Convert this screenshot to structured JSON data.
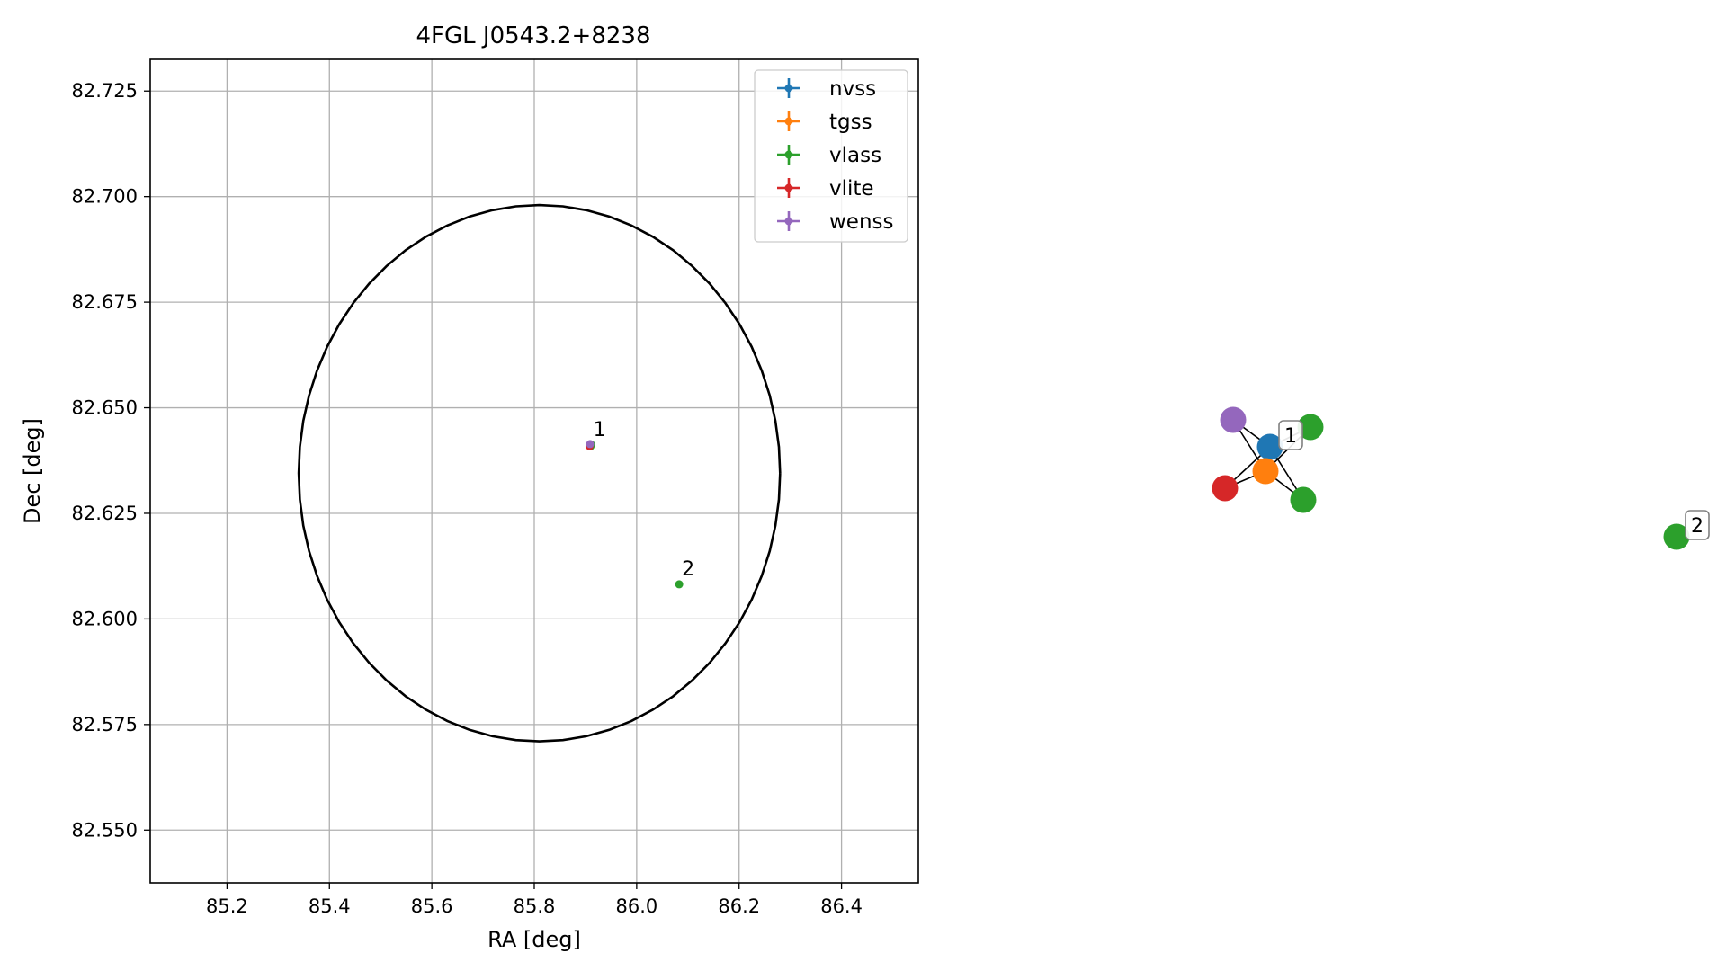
{
  "chart_data": [
    {
      "type": "scatter",
      "title": "4FGL J0543.2+8238",
      "xlabel": "RA [deg]",
      "ylabel": "Dec [deg]",
      "xlim": [
        85.05,
        86.55
      ],
      "ylim": [
        82.5375,
        82.7325
      ],
      "grid": true,
      "x_ticks": [
        85.2,
        85.4,
        85.6,
        85.8,
        86.0,
        86.2,
        86.4
      ],
      "x_tick_labels": [
        "85.2",
        "85.4",
        "85.6",
        "85.8",
        "86.0",
        "86.2",
        "86.4"
      ],
      "y_ticks": [
        82.55,
        82.575,
        82.6,
        82.625,
        82.65,
        82.675,
        82.7,
        82.725
      ],
      "y_tick_labels": [
        "82.550",
        "82.575",
        "82.600",
        "82.625",
        "82.650",
        "82.675",
        "82.700",
        "82.725"
      ],
      "legend_position": "top-right",
      "series": [
        {
          "name": "nvss",
          "color": "#1f77b4",
          "points": [
            {
              "x": 85.91,
              "y": 82.6412
            }
          ]
        },
        {
          "name": "tgss",
          "color": "#ff7f0e",
          "points": [
            {
              "x": 85.909,
              "y": 82.641
            }
          ]
        },
        {
          "name": "vlass",
          "color": "#2ca02c",
          "points": [
            {
              "x": 85.911,
              "y": 82.6413
            },
            {
              "x": 85.91,
              "y": 82.6409
            },
            {
              "x": 86.083,
              "y": 82.6082
            }
          ]
        },
        {
          "name": "vlite",
          "color": "#d62728",
          "points": [
            {
              "x": 85.908,
              "y": 82.6409
            }
          ]
        },
        {
          "name": "wenss",
          "color": "#9467bd",
          "points": [
            {
              "x": 85.909,
              "y": 82.6414
            }
          ]
        }
      ],
      "ellipse": {
        "center_x": 85.81,
        "center_y": 82.6345,
        "semi_x_deg": 0.47,
        "semi_y_deg": 0.0635,
        "color": "#000000"
      },
      "annotations": [
        {
          "text": "1",
          "x": 85.91,
          "y": 82.6412
        },
        {
          "text": "2",
          "x": 86.083,
          "y": 82.6082
        }
      ]
    },
    {
      "type": "network",
      "nodes": [
        {
          "id": "nvss_1",
          "color": "#1f77b4"
        },
        {
          "id": "tgss_1",
          "color": "#ff7f0e"
        },
        {
          "id": "vlass_1a",
          "color": "#2ca02c"
        },
        {
          "id": "vlass_1b",
          "color": "#2ca02c"
        },
        {
          "id": "vlite_1",
          "color": "#d62728"
        },
        {
          "id": "wenss_1",
          "color": "#9467bd"
        },
        {
          "id": "vlass_2",
          "color": "#2ca02c"
        }
      ],
      "edges": [
        [
          "wenss_1",
          "nvss_1"
        ],
        [
          "wenss_1",
          "tgss_1"
        ],
        [
          "nvss_1",
          "vlass_1a"
        ],
        [
          "nvss_1",
          "tgss_1"
        ],
        [
          "nvss_1",
          "vlass_1b"
        ],
        [
          "nvss_1",
          "vlite_1"
        ],
        [
          "tgss_1",
          "vlass_1a"
        ],
        [
          "tgss_1",
          "vlass_1b"
        ],
        [
          "tgss_1",
          "vlite_1"
        ]
      ],
      "labels": [
        {
          "text": "1",
          "node": "nvss_1"
        },
        {
          "text": "2",
          "node": "vlass_2"
        }
      ]
    }
  ]
}
